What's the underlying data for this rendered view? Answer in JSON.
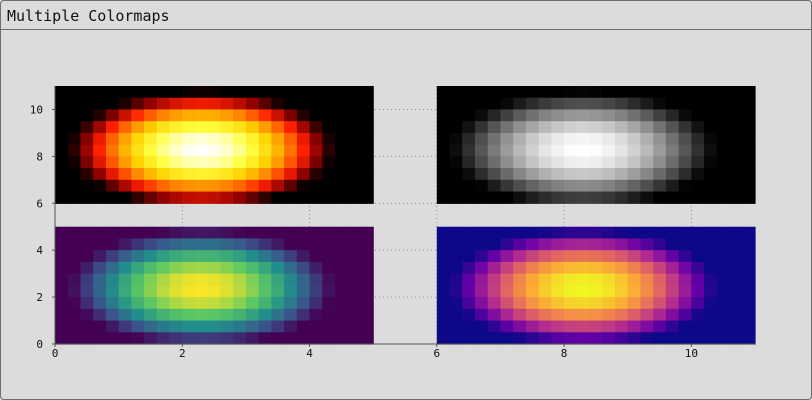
{
  "window": {
    "title": "Multiple Colormaps"
  },
  "chart_data": {
    "type": "heatmap",
    "title": "",
    "xlabel": "",
    "ylabel": "",
    "xlim": [
      0,
      11
    ],
    "ylim": [
      0,
      11
    ],
    "x_ticks": [
      "0",
      "2",
      "4",
      "6",
      "8",
      "10"
    ],
    "x_tick_values": [
      0,
      2,
      4,
      6,
      8,
      10
    ],
    "y_ticks": [
      "0",
      "2",
      "4",
      "6",
      "8",
      "10"
    ],
    "y_tick_values": [
      0,
      2,
      4,
      6,
      8,
      10
    ],
    "grid": "dotted",
    "function": "gaussian ellipse, peak 1 at center, falls to 0 at edges",
    "resolution": [
      25,
      10
    ],
    "panels": [
      {
        "name": "hot",
        "extent": [
          0,
          5,
          6,
          11
        ],
        "peak": [
          2.3,
          8.3
        ],
        "colormap": [
          "#000000",
          "#8b0000",
          "#ff2000",
          "#ff8000",
          "#ffd000",
          "#ffff40",
          "#ffffff"
        ]
      },
      {
        "name": "gray",
        "extent": [
          6,
          11,
          6,
          11
        ],
        "peak": [
          8.3,
          8.3
        ],
        "colormap": [
          "#000000",
          "#333333",
          "#666666",
          "#999999",
          "#cccccc",
          "#ffffff"
        ]
      },
      {
        "name": "viridis",
        "extent": [
          0,
          5,
          0,
          5
        ],
        "peak": [
          2.3,
          2.4
        ],
        "colormap": [
          "#440154",
          "#3b528b",
          "#21918c",
          "#5ec962",
          "#fde725"
        ]
      },
      {
        "name": "plasma",
        "extent": [
          6,
          11,
          0,
          5
        ],
        "peak": [
          8.3,
          2.4
        ],
        "colormap": [
          "#0d0887",
          "#6a00a8",
          "#b12a90",
          "#e16462",
          "#fca636",
          "#f0f921"
        ]
      }
    ]
  }
}
